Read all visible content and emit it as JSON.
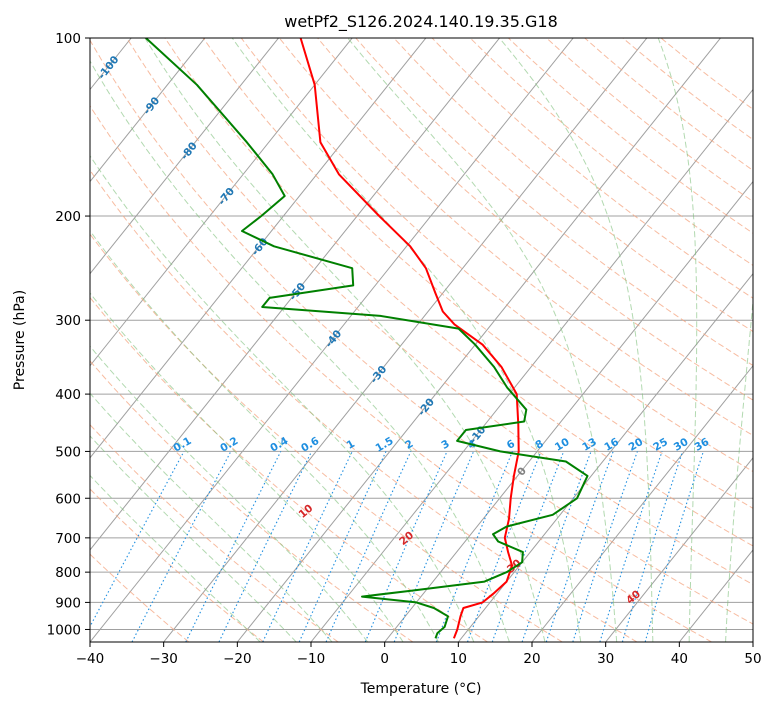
{
  "chart_data": {
    "type": "line",
    "subtype": "skew-t log-p diagram",
    "title": "wetPf2_S126.2024.140.19.35.G18",
    "xlabel": "Temperature (°C)",
    "ylabel": "Pressure (hPa)",
    "xlim": [
      -40,
      50
    ],
    "ylim": [
      1050,
      100
    ],
    "y_scale": "log",
    "x_ticks": [
      "−40",
      "−30",
      "−20",
      "−10",
      "0",
      "10",
      "20",
      "30",
      "40",
      "50"
    ],
    "y_ticks": [
      "100",
      "200",
      "300",
      "400",
      "500",
      "600",
      "700",
      "800",
      "900",
      "1000"
    ],
    "grid": true,
    "colors": {
      "temperature": "#ff0000",
      "dewpoint": "#008000",
      "isotherm": "#a0a0a0",
      "dry_adiabat": "#f4a582",
      "moist_adiabat": "#7fbf7b",
      "mixing_ratio": "#1f8fe0",
      "isotherm_label": "#1f77b4",
      "dry_adiabat_label": "#d62728",
      "zero_label": "#808080"
    },
    "series": [
      {
        "name": "",
        "role": "temperature",
        "points": [
          [
            1035,
            9.0
          ],
          [
            1000,
            8.5
          ],
          [
            950,
            7.5
          ],
          [
            920,
            7.0
          ],
          [
            900,
            9.0
          ],
          [
            870,
            9.5
          ],
          [
            830,
            10.0
          ],
          [
            780,
            9.0
          ],
          [
            740,
            7.0
          ],
          [
            700,
            5.0
          ],
          [
            650,
            3.5
          ],
          [
            600,
            1.5
          ],
          [
            550,
            -0.5
          ],
          [
            500,
            -2.5
          ],
          [
            450,
            -5.5
          ],
          [
            400,
            -9.0
          ],
          [
            360,
            -14.0
          ],
          [
            330,
            -19.0
          ],
          [
            305,
            -25.0
          ],
          [
            290,
            -28.0
          ],
          [
            270,
            -31.0
          ],
          [
            245,
            -35.0
          ],
          [
            225,
            -39.5
          ],
          [
            200,
            -47.0
          ],
          [
            170,
            -57.0
          ],
          [
            150,
            -63.0
          ],
          [
            120,
            -70.0
          ],
          [
            100,
            -77.0
          ]
        ]
      },
      {
        "name": "",
        "role": "dewpoint",
        "points": [
          [
            1035,
            6.5
          ],
          [
            1015,
            6.2
          ],
          [
            990,
            6.5
          ],
          [
            950,
            5.8
          ],
          [
            920,
            3.0
          ],
          [
            900,
            0.0
          ],
          [
            880,
            -8.0
          ],
          [
            860,
            -2.0
          ],
          [
            830,
            7.0
          ],
          [
            800,
            9.0
          ],
          [
            770,
            10.0
          ],
          [
            740,
            9.0
          ],
          [
            710,
            4.5
          ],
          [
            690,
            3.0
          ],
          [
            670,
            4.0
          ],
          [
            640,
            9.0
          ],
          [
            600,
            10.5
          ],
          [
            550,
            9.5
          ],
          [
            520,
            5.0
          ],
          [
            500,
            -5.0
          ],
          [
            480,
            -12.0
          ],
          [
            460,
            -12.0
          ],
          [
            445,
            -5.0
          ],
          [
            425,
            -6.0
          ],
          [
            390,
            -11.0
          ],
          [
            360,
            -15.0
          ],
          [
            330,
            -20.0
          ],
          [
            310,
            -24.0
          ],
          [
            295,
            -36.0
          ],
          [
            285,
            -53.0
          ],
          [
            275,
            -53.0
          ],
          [
            262,
            -43.0
          ],
          [
            245,
            -45.0
          ],
          [
            225,
            -58.0
          ],
          [
            212,
            -64.0
          ],
          [
            200,
            -63.0
          ],
          [
            185,
            -62.0
          ],
          [
            170,
            -66.0
          ],
          [
            150,
            -73.0
          ],
          [
            120,
            -86.0
          ],
          [
            100,
            -98.0
          ]
        ]
      }
    ],
    "annotations": {
      "isotherm_labels": [
        "-100",
        "-90",
        "-80",
        "-70",
        "-60",
        "-50",
        "-40",
        "-30",
        "-20",
        "-10"
      ],
      "mixing_ratio_labels": [
        "0.1",
        "0.2",
        "0.4",
        "0.6",
        "1",
        "1.5",
        "2",
        "3",
        "4",
        "6",
        "8",
        "10",
        "13",
        "16",
        "20",
        "25",
        "30",
        "36"
      ],
      "zero_label": "0",
      "dry_adiabat_labels": [
        "10",
        "20",
        "30",
        "40"
      ]
    }
  }
}
